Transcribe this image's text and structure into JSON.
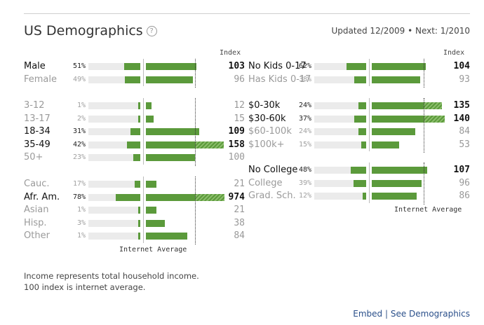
{
  "header": {
    "title": "US Demographics",
    "help_icon": "?",
    "updated": "Updated 12/2009 • Next: 1/2010"
  },
  "index_label": "Index",
  "internet_average_label": "Internet Average",
  "groups": {
    "gender": [
      {
        "label": "Male",
        "pct": "51%",
        "index": "103",
        "pct_value": 51,
        "index_value": 103,
        "emph": true
      },
      {
        "label": "Female",
        "pct": "49%",
        "index": "96",
        "pct_value": 49,
        "index_value": 96,
        "emph": false
      }
    ],
    "age": [
      {
        "label": "3-12",
        "pct": "1%",
        "index": "12",
        "pct_value": 1,
        "index_value": 12,
        "emph": false
      },
      {
        "label": "13-17",
        "pct": "2%",
        "index": "15",
        "pct_value": 2,
        "index_value": 15,
        "emph": false
      },
      {
        "label": "18-34",
        "pct": "31%",
        "index": "109",
        "pct_value": 31,
        "index_value": 109,
        "emph": true
      },
      {
        "label": "35-49",
        "pct": "42%",
        "index": "158",
        "pct_value": 42,
        "index_value": 158,
        "emph": true
      },
      {
        "label": "50+",
        "pct": "23%",
        "index": "100",
        "pct_value": 23,
        "index_value": 100,
        "emph": false
      }
    ],
    "ethnicity": [
      {
        "label": "Cauc.",
        "pct": "17%",
        "index": "21",
        "pct_value": 17,
        "index_value": 21,
        "emph": false
      },
      {
        "label": "Afr. Am.",
        "pct": "78%",
        "index": "974",
        "pct_value": 78,
        "index_value": 974,
        "emph": true
      },
      {
        "label": "Asian",
        "pct": "1%",
        "index": "21",
        "pct_value": 1,
        "index_value": 21,
        "emph": false
      },
      {
        "label": "Hisp.",
        "pct": "3%",
        "index": "38",
        "pct_value": 3,
        "index_value": 38,
        "emph": false
      },
      {
        "label": "Other",
        "pct": "1%",
        "index": "84",
        "pct_value": 1,
        "index_value": 84,
        "emph": false
      }
    ],
    "kids": [
      {
        "label": "No Kids 0-17",
        "pct": "62%",
        "index": "104",
        "pct_value": 62,
        "index_value": 104,
        "emph": true
      },
      {
        "label": "Has Kids 0-17",
        "pct": "38%",
        "index": "93",
        "pct_value": 38,
        "index_value": 93,
        "emph": false
      }
    ],
    "income": [
      {
        "label": "$0-30k",
        "pct": "24%",
        "index": "135",
        "pct_value": 24,
        "index_value": 135,
        "emph": true
      },
      {
        "label": "$30-60k",
        "pct": "37%",
        "index": "140",
        "pct_value": 37,
        "index_value": 140,
        "emph": true
      },
      {
        "label": "$60-100k",
        "pct": "24%",
        "index": "84",
        "pct_value": 24,
        "index_value": 84,
        "emph": false
      },
      {
        "label": "$100k+",
        "pct": "15%",
        "index": "53",
        "pct_value": 15,
        "index_value": 53,
        "emph": false
      }
    ],
    "education": [
      {
        "label": "No College",
        "pct": "48%",
        "index": "107",
        "pct_value": 48,
        "index_value": 107,
        "emph": true
      },
      {
        "label": "College",
        "pct": "39%",
        "index": "96",
        "pct_value": 39,
        "index_value": 96,
        "emph": false
      },
      {
        "label": "Grad. Sch.",
        "pct": "12%",
        "index": "86",
        "pct_value": 12,
        "index_value": 86,
        "emph": false
      }
    ]
  },
  "notes": {
    "line1": "Income represents total household income.",
    "line2": "100 index is internet average."
  },
  "footer": {
    "embed": "Embed",
    "separator": "|",
    "see_demographics": "See Demographics"
  },
  "colors": {
    "bar": "#5b9a3b",
    "track": "#ebebeb"
  }
}
